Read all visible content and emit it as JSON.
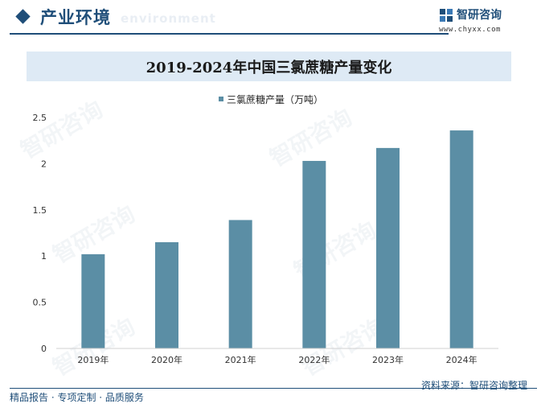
{
  "header": {
    "section_title": "产业环境",
    "section_subtitle": "environment",
    "brand_name": "智研咨询",
    "brand_url": "www.chyxx.com"
  },
  "watermark_text": "智研咨询",
  "chart_data": {
    "type": "bar",
    "title": "2019-2024年中国三氯蔗糖产量变化",
    "categories": [
      "2019年",
      "2020年",
      "2021年",
      "2022年",
      "2023年",
      "2024年"
    ],
    "series": [
      {
        "name": "三氯蔗糖产量（万吨）",
        "values": [
          1.02,
          1.15,
          1.39,
          2.03,
          2.17,
          2.36
        ]
      }
    ],
    "ylim": [
      0,
      2.5
    ],
    "yticks": [
      "0",
      "0.5",
      "1",
      "1.5",
      "2",
      "2.5"
    ],
    "ytick_values": [
      0,
      0.5,
      1,
      1.5,
      2,
      2.5
    ],
    "grid": false,
    "legend_position": "top-center",
    "bar_color": "#5b8ea5"
  },
  "footer": {
    "left": "精品报告 · 专项定制 · 品质服务",
    "right": "资料来源：智研咨询整理"
  }
}
